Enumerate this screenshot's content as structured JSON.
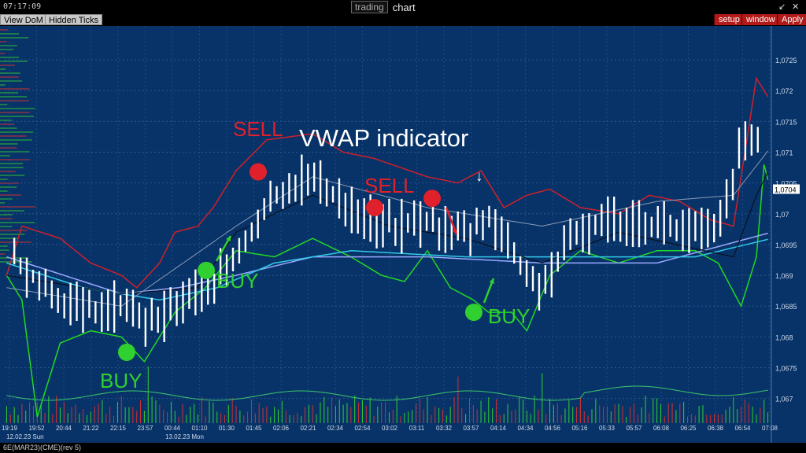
{
  "window": {
    "clock": "07:17:09",
    "app_label": "trading",
    "title": "chart",
    "controls": [
      "↙",
      "✕"
    ]
  },
  "toolbar": {
    "left_buttons": [
      "View DoM",
      "Hidden Ticks"
    ],
    "right_buttons": [
      "setup",
      "window",
      "Apply"
    ]
  },
  "status_bar": {
    "instrument": "6E(MAR23)(CME)(rev 5)"
  },
  "annotations": {
    "title": "VWAP indicator",
    "arrow_glyph": "↓",
    "sell_label": "SELL",
    "buy_label": "BUY"
  },
  "chart_data": {
    "type": "bar",
    "description_text": "VWAP indicator",
    "y_ticks": [
      "1,0725",
      "1,072",
      "1,0715",
      "1,071",
      "1,0705",
      "1,07",
      "1,0695",
      "1,069",
      "1,0685",
      "1,068",
      "1,0675",
      "1,067"
    ],
    "y_tick_values": [
      1.0725,
      1.072,
      1.0715,
      1.071,
      1.0705,
      1.07,
      1.0695,
      1.069,
      1.0685,
      1.068,
      1.0675,
      1.067
    ],
    "ylim": [
      1.0666,
      1.07305
    ],
    "last_price_label": "1,0704",
    "last_price": 1.0704,
    "x_ticks": [
      "19:19",
      "19:52",
      "20:44",
      "21:22",
      "22:15",
      "23:57",
      "00:44",
      "01:10",
      "01:30",
      "01:45",
      "02:06",
      "02:21",
      "02:34",
      "02:54",
      "03:02",
      "03:11",
      "03:32",
      "03:57",
      "04:14",
      "04:34",
      "04:56",
      "05:16",
      "05:33",
      "05:57",
      "06:08",
      "06:25",
      "06:38",
      "06:54",
      "07:08"
    ],
    "x_date_labels": [
      "12.02.23 Sun",
      "13.02.23 Mon"
    ],
    "n_bars": 120,
    "colors": {
      "background": "#083368",
      "price_bars": "#ffffff",
      "upper_band": "#d0202a",
      "lower_band": "#22d822",
      "vwap": "#9aa8ff",
      "vwap_fast": "#30c8e8",
      "vwap_mid": "#0a0a14",
      "sell_marker": "#e0202a",
      "buy_marker": "#30d030",
      "volume_up": "#30d030",
      "volume_down": "#d03030"
    },
    "signals": [
      {
        "type": "BUY",
        "bar": 37,
        "price": 1.06775
      },
      {
        "type": "BUY",
        "bar": 59,
        "price": 1.06908
      },
      {
        "type": "SELL",
        "bar": 74,
        "price": 1.07068
      },
      {
        "type": "SELL",
        "bar": 108,
        "price": 1.0701
      },
      {
        "type": "SELL",
        "bar": 126,
        "price": 1.07025
      },
      {
        "type": "BUY",
        "bar": 139,
        "price": 1.0684
      }
    ]
  }
}
